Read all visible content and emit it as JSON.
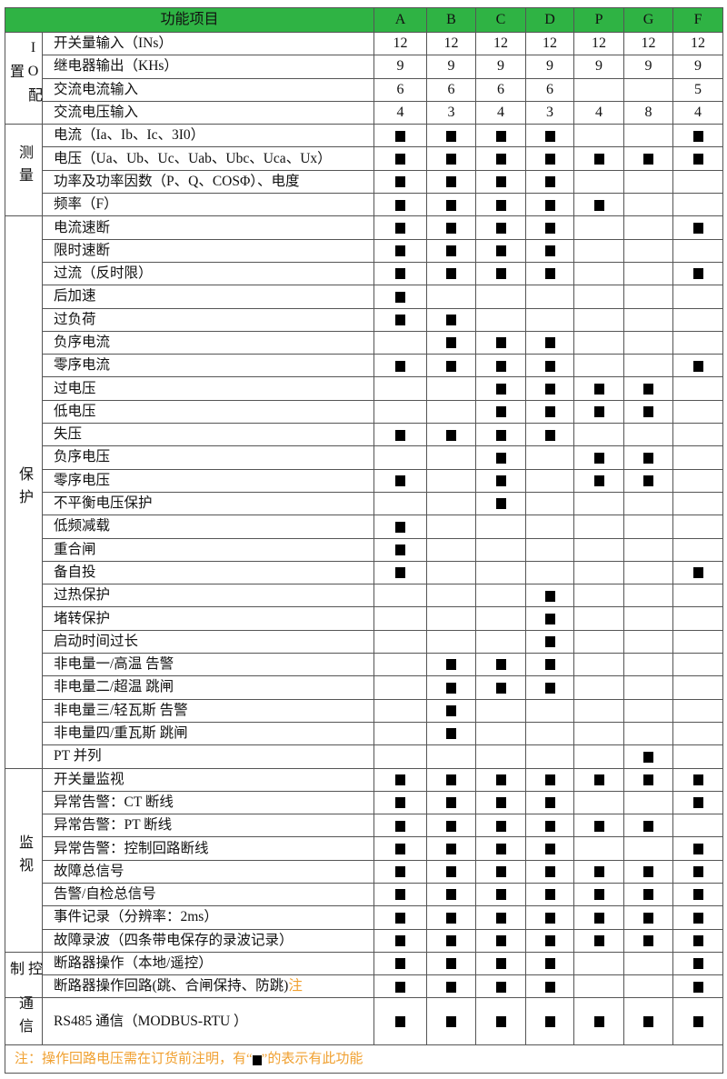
{
  "header": {
    "title": "功能项目",
    "columns": [
      "A",
      "B",
      "C",
      "D",
      "P",
      "G",
      "F"
    ]
  },
  "colors": {
    "header_bg": "#2fb344",
    "note": "#f0a030",
    "mark": "#000000"
  },
  "mark_symbol": "■",
  "groups": [
    {
      "label": "IO配置",
      "chars": [
        "I",
        "O",
        "配",
        "置"
      ],
      "rows": [
        {
          "label": "开关量输入（INs）",
          "values": [
            "12",
            "12",
            "12",
            "12",
            "12",
            "12",
            "12"
          ]
        },
        {
          "label": "继电器输出（KHs）",
          "values": [
            "9",
            "9",
            "9",
            "9",
            "9",
            "9",
            "9"
          ]
        },
        {
          "label": "交流电流输入",
          "values": [
            "6",
            "6",
            "6",
            "6",
            "",
            "",
            "5"
          ]
        },
        {
          "label": "交流电压输入",
          "values": [
            "4",
            "3",
            "4",
            "3",
            "4",
            "8",
            "4"
          ]
        }
      ]
    },
    {
      "label": "测量",
      "chars": [
        "测",
        "量"
      ],
      "rows": [
        {
          "label": "电流（Ia、Ib、Ic、3I0）",
          "values": [
            "■",
            "■",
            "■",
            "■",
            "",
            "",
            "■"
          ]
        },
        {
          "label": "电压（Ua、Ub、Uc、Uab、Ubc、Uca、Ux）",
          "values": [
            "■",
            "■",
            "■",
            "■",
            "■",
            "■",
            "■"
          ]
        },
        {
          "label": "功率及功率因数（P、Q、COSΦ）、电度",
          "values": [
            "■",
            "■",
            "■",
            "■",
            "",
            "",
            ""
          ]
        },
        {
          "label": "频率（F）",
          "values": [
            "■",
            "■",
            "■",
            "■",
            "■",
            "",
            ""
          ]
        }
      ]
    },
    {
      "label": "保护",
      "chars": [
        "保",
        "护"
      ],
      "rows": [
        {
          "label": "电流速断",
          "values": [
            "■",
            "■",
            "■",
            "■",
            "",
            "",
            "■"
          ]
        },
        {
          "label": "限时速断",
          "values": [
            "■",
            "■",
            "■",
            "■",
            "",
            "",
            ""
          ]
        },
        {
          "label": "过流（反时限）",
          "values": [
            "■",
            "■",
            "■",
            "■",
            "",
            "",
            "■"
          ]
        },
        {
          "label": "后加速",
          "values": [
            "■",
            "",
            "",
            "",
            "",
            "",
            ""
          ]
        },
        {
          "label": "过负荷",
          "values": [
            "■",
            "■",
            "",
            "",
            "",
            "",
            ""
          ]
        },
        {
          "label": "负序电流",
          "values": [
            "",
            "■",
            "■",
            "■",
            "",
            "",
            ""
          ]
        },
        {
          "label": "零序电流",
          "values": [
            "■",
            "■",
            "■",
            "■",
            "",
            "",
            "■"
          ]
        },
        {
          "label": "过电压",
          "values": [
            "",
            "",
            "■",
            "■",
            "■",
            "■",
            ""
          ]
        },
        {
          "label": "低电压",
          "values": [
            "",
            "",
            "■",
            "■",
            "■",
            "■",
            ""
          ]
        },
        {
          "label": "失压",
          "values": [
            "■",
            "■",
            "■",
            "■",
            "",
            "",
            ""
          ]
        },
        {
          "label": "负序电压",
          "values": [
            "",
            "",
            "■",
            "",
            "■",
            "■",
            ""
          ]
        },
        {
          "label": "零序电压",
          "values": [
            "■",
            "",
            "■",
            "",
            "■",
            "■",
            ""
          ]
        },
        {
          "label": "不平衡电压保护",
          "values": [
            "",
            "",
            "■",
            "",
            "",
            "",
            ""
          ]
        },
        {
          "label": "低频减载",
          "values": [
            "■",
            "",
            "",
            "",
            "",
            "",
            ""
          ]
        },
        {
          "label": "重合闸",
          "values": [
            "■",
            "",
            "",
            "",
            "",
            "",
            ""
          ]
        },
        {
          "label": "备自投",
          "values": [
            "■",
            "",
            "",
            "",
            "",
            "",
            "■"
          ]
        },
        {
          "label": "过热保护",
          "values": [
            "",
            "",
            "",
            "■",
            "",
            "",
            ""
          ]
        },
        {
          "label": "堵转保护",
          "values": [
            "",
            "",
            "",
            "■",
            "",
            "",
            ""
          ]
        },
        {
          "label": "启动时间过长",
          "values": [
            "",
            "",
            "",
            "■",
            "",
            "",
            ""
          ]
        },
        {
          "label": "非电量一/高温 告警",
          "values": [
            "",
            "■",
            "■",
            "■",
            "",
            "",
            ""
          ]
        },
        {
          "label": "非电量二/超温 跳闸",
          "values": [
            "",
            "■",
            "■",
            "■",
            "",
            "",
            ""
          ]
        },
        {
          "label": "非电量三/轻瓦斯 告警",
          "values": [
            "",
            "■",
            "",
            "",
            "",
            "",
            ""
          ]
        },
        {
          "label": "非电量四/重瓦斯 跳闸",
          "values": [
            "",
            "■",
            "",
            "",
            "",
            "",
            ""
          ]
        },
        {
          "label": "PT 并列",
          "values": [
            "",
            "",
            "",
            "",
            "",
            "■",
            ""
          ]
        }
      ]
    },
    {
      "label": "监视",
      "chars": [
        "监",
        "视"
      ],
      "rows": [
        {
          "label": "开关量监视",
          "values": [
            "■",
            "■",
            "■",
            "■",
            "■",
            "■",
            "■"
          ]
        },
        {
          "label": "异常告警：CT 断线",
          "values": [
            "■",
            "■",
            "■",
            "■",
            "",
            "",
            "■"
          ]
        },
        {
          "label": "异常告警：PT 断线",
          "values": [
            "■",
            "■",
            "■",
            "■",
            "■",
            "■",
            ""
          ]
        },
        {
          "label": "异常告警：控制回路断线",
          "values": [
            "■",
            "■",
            "■",
            "■",
            "",
            "",
            "■"
          ]
        },
        {
          "label": "故障总信号",
          "values": [
            "■",
            "■",
            "■",
            "■",
            "■",
            "■",
            "■"
          ]
        },
        {
          "label": "告警/自检总信号",
          "values": [
            "■",
            "■",
            "■",
            "■",
            "■",
            "■",
            "■"
          ]
        },
        {
          "label": "事件记录（分辨率：2ms）",
          "values": [
            "■",
            "■",
            "■",
            "■",
            "■",
            "■",
            "■"
          ]
        },
        {
          "label": "故障录波（四条带电保存的录波记录）",
          "values": [
            "■",
            "■",
            "■",
            "■",
            "■",
            "■",
            "■"
          ]
        }
      ]
    },
    {
      "label": "控制",
      "chars": [
        "控",
        "制"
      ],
      "rows": [
        {
          "label": "断路器操作（本地/遥控）",
          "values": [
            "■",
            "■",
            "■",
            "■",
            "",
            "",
            "■"
          ]
        },
        {
          "label": "断路器操作回路(跳、合闸保持、防跳)",
          "note_mark": "注",
          "values": [
            "■",
            "■",
            "■",
            "■",
            "",
            "",
            "■"
          ]
        }
      ]
    },
    {
      "label": "通信",
      "chars": [
        "通",
        "信"
      ],
      "tall": true,
      "rows": [
        {
          "label": "RS485 通信（MODBUS-RTU ）",
          "values": [
            "■",
            "■",
            "■",
            "■",
            "■",
            "■",
            "■"
          ]
        }
      ]
    }
  ],
  "footnote": {
    "before": "注：操作回路电压需在订货前注明，有“",
    "mark": "■",
    "after": "”的表示有此功能"
  }
}
